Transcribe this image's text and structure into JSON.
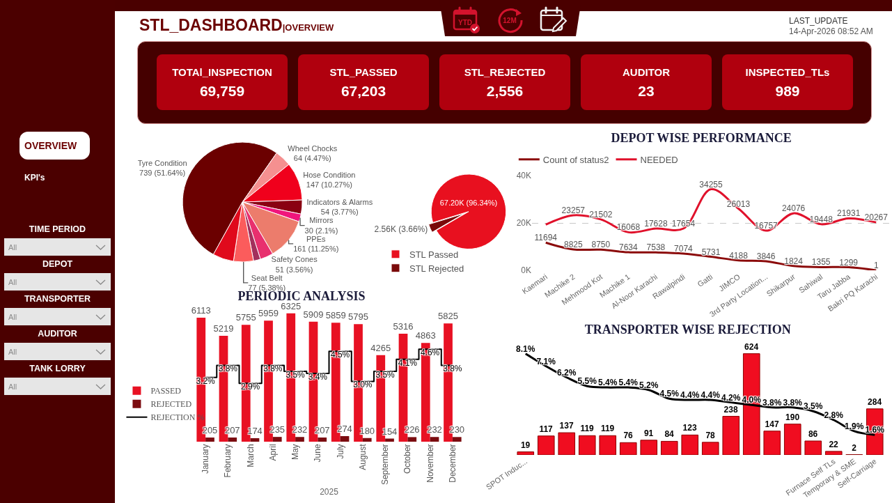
{
  "chart_data": [
    {
      "type": "other",
      "title": "STL_DASHBOARD",
      "subtitle": "|OVERVIEW",
      "annotations": [
        "LAST_UPDATE",
        "14-Apr-2026 08:52 AM",
        "YTD",
        "12M"
      ]
    },
    {
      "type": "other",
      "annotations": [
        "TOTAl_INSPECTION",
        "69,759",
        "STL_PASSED",
        "67,203",
        "STL_REJECTED",
        "2,556",
        "AUDITOR",
        "23",
        "INSPECTED_TLs",
        "989"
      ]
    },
    {
      "type": "other",
      "annotations": [
        "OVERVIEW",
        "KPI's",
        "TIME PERIOD",
        "All",
        "DEPOT",
        "All",
        "TRANSPORTER",
        "All",
        "AUDITOR",
        "All",
        "TANK LORRY",
        "All"
      ]
    },
    {
      "type": "pie",
      "categories": [
        "Tyre Condition",
        "Wheel Chocks",
        "Hose Condition",
        "Indicators & Alarms",
        "Mirrors",
        "PPEs",
        "Safety Cones",
        null,
        "Seat Belt",
        null
      ],
      "values": [
        739,
        64,
        147,
        54,
        30,
        161,
        51,
        27,
        77,
        81
      ],
      "value_labels": [
        "739 (51.64%)",
        "64 (4.47%)",
        "147 (10.27%)",
        "54 (3.77%)",
        "30 (2.1%)",
        "161 (11.25%)",
        "51 (3.56%)",
        null,
        "77 (5.38%)",
        null
      ],
      "colors": [
        "#6b0000",
        "#f59090",
        "#f0001c",
        "#8a0012",
        "#f0157c",
        "#ec7c6c",
        "#e8306e",
        "#a3305c",
        "#fb5c5c",
        "#e00a1c"
      ]
    },
    {
      "type": "pie",
      "categories": [
        "STL Passed",
        "STL Rejected"
      ],
      "values": [
        67200,
        2560
      ],
      "value_labels": [
        "67.20K (96.34%)",
        "2.56K (3.66%)"
      ],
      "colors": [
        "#e8101f",
        "#7a0a0a"
      ],
      "legend": "bottom"
    },
    {
      "type": "line",
      "title": "DEPOT WISE PERFORMANCE",
      "categories": [
        "Kaemari",
        "Machike 2",
        "Mehmood Kot",
        "Machike 1",
        "Al-Noor Karachi",
        "Rawalpindi",
        "Gatti",
        "JIMCO",
        "3rd Party Location...",
        "Shikarpur",
        "Sahiwal",
        "Taru Jabba",
        "Bakri PQ Karachi"
      ],
      "series": [
        {
          "name": "Count of status2",
          "color": "#8b0a0a",
          "values": [
            11694,
            8825,
            8750,
            7634,
            7538,
            7074,
            5731,
            4188,
            3846,
            1824,
            1355,
            1299,
            1
          ],
          "value_labels": [
            "11694",
            "8825",
            "8750",
            "7634",
            "7538",
            "7074",
            "5731",
            "4188",
            "3846",
            "1824",
            "1355",
            "1299",
            "1"
          ]
        },
        {
          "name": "NEEDED",
          "color": "#e0112b",
          "values": [
            19300,
            23257,
            21502,
            16068,
            17628,
            17654,
            34255,
            26013,
            16757,
            24076,
            19448,
            21931,
            20267
          ],
          "value_labels": [
            null,
            "23257",
            "21502",
            "16068",
            "17628",
            "17654",
            "34255",
            "26013",
            "16757",
            "24076",
            "19448",
            "21931",
            "20267"
          ]
        }
      ],
      "ylim": [
        0,
        40000
      ],
      "yticks": [
        {
          "value": 0,
          "label": "0K"
        },
        {
          "value": 20000,
          "label": "20K"
        },
        {
          "value": 40000,
          "label": "40K"
        }
      ],
      "grid": "y",
      "legend": "top left"
    },
    {
      "type": "bar",
      "title": "PERIODIC ANALYSIS",
      "xlabel": "2025",
      "categories": [
        "January",
        "February",
        "March",
        "April",
        "May",
        "June",
        "July",
        "August",
        "September",
        "October",
        "November",
        "December"
      ],
      "series": [
        {
          "name": "PASSED",
          "color": "#e81123",
          "values": [
            6113,
            5219,
            5755,
            5959,
            6325,
            5909,
            5859,
            5795,
            4265,
            5316,
            4863,
            5825
          ]
        },
        {
          "name": "REJECTED",
          "color": "#7b0c10",
          "values": [
            205,
            207,
            174,
            235,
            232,
            207,
            274,
            180,
            154,
            226,
            232,
            230
          ]
        },
        {
          "name": "REJECTION %",
          "type": "step",
          "axis": "y2",
          "color": "#000000",
          "values": [
            3.2,
            3.8,
            2.9,
            3.8,
            3.5,
            3.4,
            4.5,
            3.0,
            3.5,
            4.1,
            4.6,
            3.8
          ],
          "value_labels": [
            "3.2%",
            "3.8%",
            "2.9%",
            "3.8%",
            "3.5%",
            "3.4%",
            "4.5%",
            "3.0%",
            "3.5%",
            "4.1%",
            "4.6%",
            "3.8%"
          ]
        }
      ],
      "data_labels": true,
      "legend": "left"
    },
    {
      "type": "bar",
      "title": "TRANSPORTER WISE REJECTION",
      "categories": [
        "SPOT Induc...",
        null,
        null,
        null,
        null,
        null,
        null,
        null,
        null,
        null,
        null,
        null,
        null,
        null,
        null,
        "Furnace Self TLs",
        "Temporary & SME",
        "Self-Carriage"
      ],
      "series": [
        {
          "color": "#f00d20",
          "values": [
            19,
            117,
            137,
            119,
            119,
            76,
            91,
            84,
            123,
            78,
            238,
            624,
            147,
            190,
            86,
            22,
            2,
            284
          ]
        },
        {
          "type": "line",
          "axis": "y2",
          "color": "#000000",
          "values": [
            8.1,
            7.1,
            6.2,
            5.5,
            5.4,
            5.4,
            5.2,
            4.5,
            4.4,
            4.4,
            4.2,
            4.0,
            3.8,
            3.8,
            3.5,
            2.8,
            1.9,
            1.6
          ],
          "value_labels": [
            "8.1%",
            "7.1%",
            "6.2%",
            "5.5%",
            "5.4%",
            "5.4%",
            "5.2%",
            "4.5%",
            "4.4%",
            "4.4%",
            "4.2%",
            "4.0%",
            "3.8%",
            "3.8%",
            "3.5%",
            "2.8%",
            "1.9%",
            "1.6%"
          ]
        }
      ],
      "data_labels": true
    }
  ]
}
